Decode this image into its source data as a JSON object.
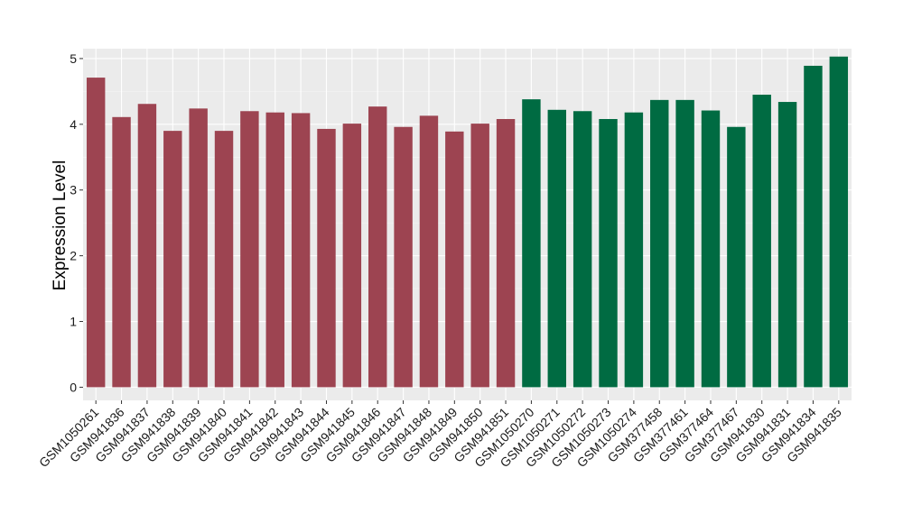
{
  "chart_data": {
    "type": "bar",
    "title": "",
    "xlabel": "",
    "ylabel": "Expression Level",
    "ylim": [
      -0.2,
      5.15
    ],
    "yticks": [
      0,
      1,
      2,
      3,
      4,
      5
    ],
    "grid": true,
    "legend": "none",
    "background": "#ebebeb",
    "categories": [
      "GSM1050261",
      "GSM941836",
      "GSM941837",
      "GSM941838",
      "GSM941839",
      "GSM941840",
      "GSM941841",
      "GSM941842",
      "GSM941843",
      "GSM941844",
      "GSM941845",
      "GSM941846",
      "GSM941847",
      "GSM941848",
      "GSM941849",
      "GSM941850",
      "GSM941851",
      "GSM1050270",
      "GSM1050271",
      "GSM1050272",
      "GSM1050273",
      "GSM1050274",
      "GSM377458",
      "GSM377461",
      "GSM377464",
      "GSM377467",
      "GSM941830",
      "GSM941831",
      "GSM941834",
      "GSM941835"
    ],
    "values": [
      4.71,
      4.11,
      4.31,
      3.9,
      4.24,
      3.9,
      4.2,
      4.18,
      4.17,
      3.93,
      4.01,
      4.27,
      3.96,
      4.13,
      3.89,
      4.01,
      4.08,
      4.38,
      4.22,
      4.2,
      4.08,
      4.18,
      4.37,
      4.37,
      4.21,
      3.96,
      4.45,
      4.34,
      4.89,
      5.03
    ],
    "groups": [
      0,
      0,
      0,
      0,
      0,
      0,
      0,
      0,
      0,
      0,
      0,
      0,
      0,
      0,
      0,
      0,
      0,
      1,
      1,
      1,
      1,
      1,
      1,
      1,
      1,
      1,
      1,
      1,
      1,
      1
    ],
    "group_colors": [
      "#9d4451",
      "#006b42"
    ]
  }
}
